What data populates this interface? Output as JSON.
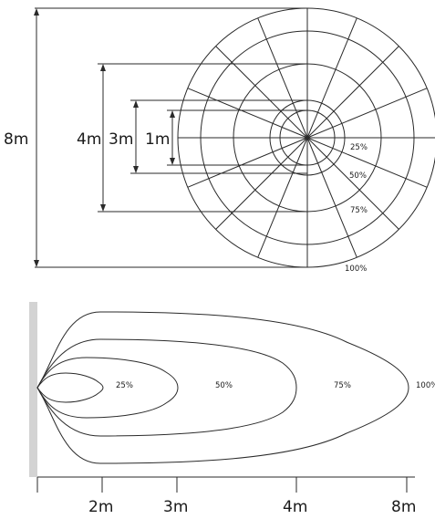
{
  "colors": {
    "fill": "#e8c3c8",
    "stroke": "#2a2a2a",
    "wall": "#d3d3d3",
    "background": "#ffffff"
  },
  "top_view": {
    "dimensions": [
      {
        "label": "8m",
        "meters": 8
      },
      {
        "label": "4m",
        "meters": 4
      },
      {
        "label": "3m",
        "meters": 3
      },
      {
        "label": "1m",
        "meters": 1
      }
    ],
    "rings": [
      {
        "label": "25%",
        "fraction": 0.25
      },
      {
        "label": "50%",
        "fraction": 0.5
      },
      {
        "label": "75%",
        "fraction": 0.75
      },
      {
        "label": "100%",
        "fraction": 1.0
      }
    ],
    "sector_count": 16
  },
  "side_view": {
    "lobes": [
      {
        "label": "25%",
        "fraction": 0.25
      },
      {
        "label": "50%",
        "fraction": 0.5
      },
      {
        "label": "75%",
        "fraction": 0.75
      },
      {
        "label": "100%",
        "fraction": 1.0
      }
    ],
    "axis_ticks": [
      {
        "label": "",
        "meters": 0
      },
      {
        "label": "2m",
        "meters": 2
      },
      {
        "label": "3m",
        "meters": 3
      },
      {
        "label": "4m",
        "meters": 4
      },
      {
        "label": "8m",
        "meters": 8
      }
    ]
  }
}
